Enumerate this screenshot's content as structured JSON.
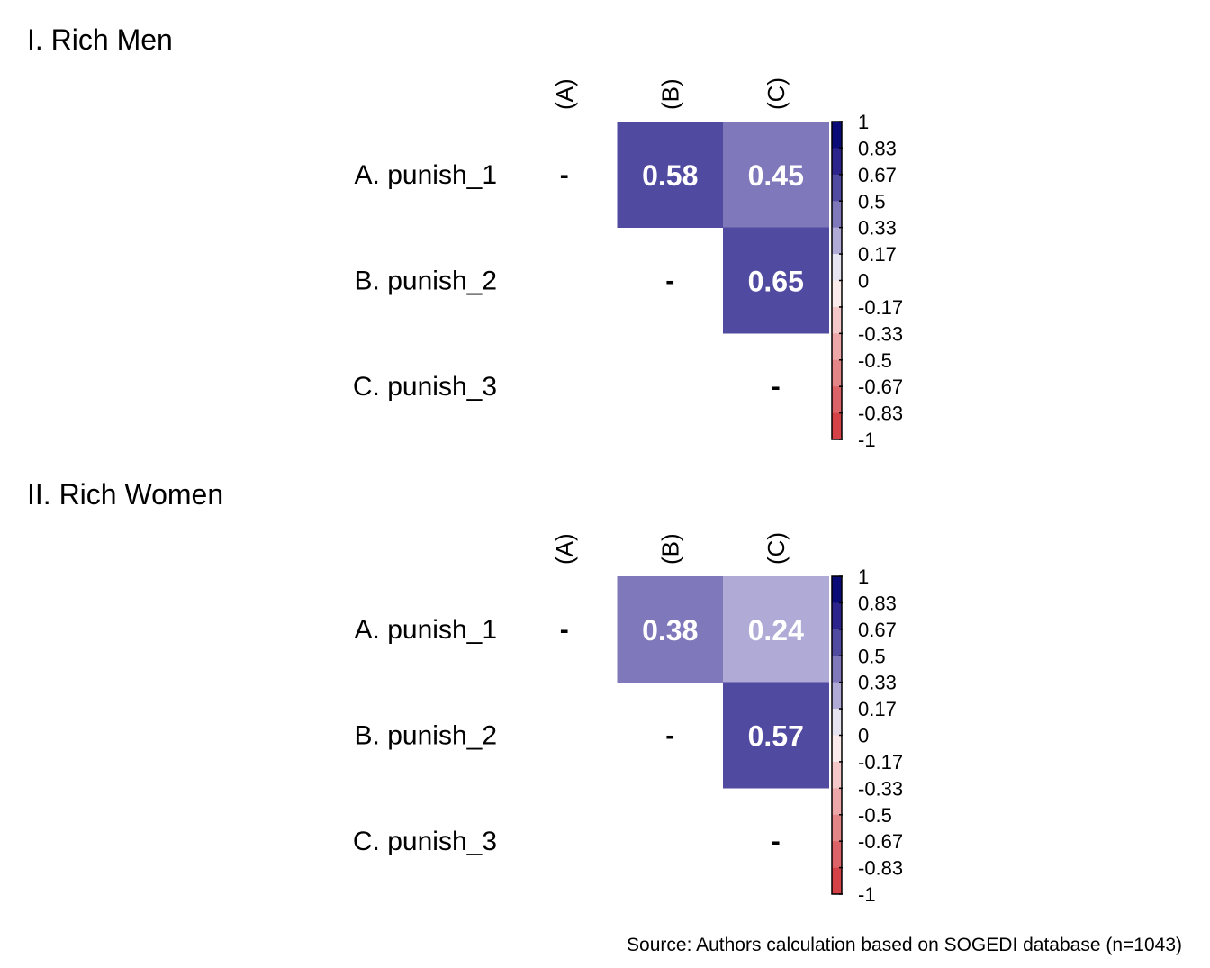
{
  "chart_data": [
    {
      "type": "heatmap",
      "title": "I. Rich Men",
      "row_labels": [
        "A. punish_1",
        "B. punish_2",
        "C. punish_3"
      ],
      "col_labels": [
        "(A)",
        "(B)",
        "(C)"
      ],
      "diagonal_marker": "-",
      "cells": [
        {
          "row": 0,
          "col": 1,
          "value": 0.58,
          "label": "0.58"
        },
        {
          "row": 0,
          "col": 2,
          "value": 0.45,
          "label": "0.45"
        },
        {
          "row": 1,
          "col": 2,
          "value": 0.65,
          "label": "0.65"
        }
      ],
      "colorbar": {
        "range": [
          -1,
          1
        ],
        "ticks": [
          "1",
          "0.83",
          "0.67",
          "0.5",
          "0.33",
          "0.17",
          "0",
          "-0.17",
          "-0.33",
          "-0.5",
          "-0.67",
          "-0.83",
          "-1"
        ]
      }
    },
    {
      "type": "heatmap",
      "title": "II. Rich Women",
      "row_labels": [
        "A. punish_1",
        "B. punish_2",
        "C. punish_3"
      ],
      "col_labels": [
        "(A)",
        "(B)",
        "(C)"
      ],
      "diagonal_marker": "-",
      "cells": [
        {
          "row": 0,
          "col": 1,
          "value": 0.38,
          "label": "0.38"
        },
        {
          "row": 0,
          "col": 2,
          "value": 0.24,
          "label": "0.24"
        },
        {
          "row": 1,
          "col": 2,
          "value": 0.57,
          "label": "0.57"
        }
      ],
      "colorbar": {
        "range": [
          -1,
          1
        ],
        "ticks": [
          "1",
          "0.83",
          "0.67",
          "0.5",
          "0.33",
          "0.17",
          "0",
          "-0.17",
          "-0.33",
          "-0.5",
          "-0.67",
          "-0.83",
          "-1"
        ]
      }
    }
  ],
  "color_bins": [
    "#0B0B78",
    "#2D238D",
    "#514AA1",
    "#7F78BA",
    "#B0AAD6",
    "#E5E4F0",
    "#FBEBEA",
    "#F4C8C8",
    "#EDA7A8",
    "#E48588",
    "#DC6367",
    "#D44248"
  ],
  "source": "Source: Authors calculation based on SOGEDI database (n=1043)"
}
